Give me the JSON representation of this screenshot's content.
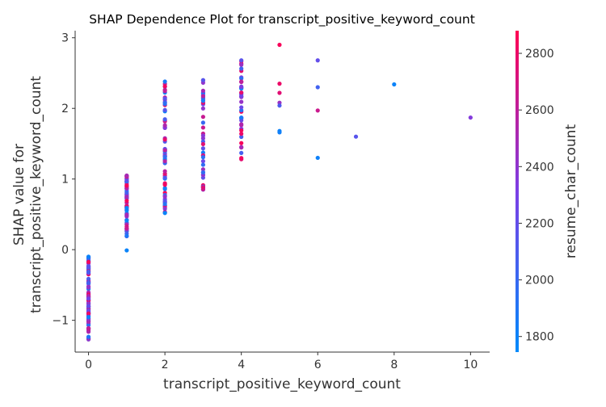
{
  "chart_data": {
    "type": "scatter",
    "title": "SHAP Dependence Plot for transcript_positive_keyword_count",
    "xlabel": "transcript_positive_keyword_count",
    "ylabel_lines": [
      "SHAP value for",
      "transcript_positive_keyword_count"
    ],
    "colorbar_label": "resume_char_count",
    "xlim": [
      -0.35,
      10.5
    ],
    "ylim": [
      -1.45,
      3.1
    ],
    "x_ticks": [
      0,
      2,
      4,
      6,
      8,
      10
    ],
    "y_ticks": [
      -1,
      0,
      1,
      2,
      3
    ],
    "colorbar_range": [
      1745,
      2880
    ],
    "colorbar_ticks": [
      1800,
      2000,
      2200,
      2400,
      2600,
      2800
    ],
    "colormap": [
      "#008afb",
      "#7b3fe6",
      "#ff0052"
    ],
    "grid": false,
    "point_groups": [
      {
        "x": 0,
        "y_min": -1.27,
        "y_max": -0.1,
        "count": 110,
        "c_min": 1760,
        "c_max": 2870
      },
      {
        "x": 1,
        "y_min": 0.19,
        "y_max": 1.05,
        "count": 60,
        "c_min": 1760,
        "c_max": 2870
      },
      {
        "x": 2,
        "y_min": 0.52,
        "y_max": 2.38,
        "count": 70,
        "c_min": 1760,
        "c_max": 2870
      },
      {
        "x": 3,
        "y_min": 0.85,
        "y_max": 2.4,
        "count": 45,
        "c_min": 1760,
        "c_max": 2870
      },
      {
        "x": 4,
        "y_min": 1.28,
        "y_max": 2.68,
        "count": 40,
        "c_min": 1760,
        "c_max": 2870
      }
    ],
    "points": [
      {
        "x": 1,
        "y": -0.01,
        "c": 1790
      },
      {
        "x": 2,
        "y": 0.52,
        "c": 1790
      },
      {
        "x": 5,
        "y": 2.9,
        "c": 2850
      },
      {
        "x": 5,
        "y": 2.35,
        "c": 2800
      },
      {
        "x": 5,
        "y": 2.22,
        "c": 2750
      },
      {
        "x": 5,
        "y": 2.08,
        "c": 2450
      },
      {
        "x": 5,
        "y": 2.04,
        "c": 2100
      },
      {
        "x": 5,
        "y": 1.68,
        "c": 1800
      },
      {
        "x": 5,
        "y": 1.66,
        "c": 1820
      },
      {
        "x": 6,
        "y": 2.68,
        "c": 2200
      },
      {
        "x": 6,
        "y": 2.3,
        "c": 2050
      },
      {
        "x": 6,
        "y": 1.97,
        "c": 2650
      },
      {
        "x": 6,
        "y": 1.3,
        "c": 1810
      },
      {
        "x": 7,
        "y": 1.6,
        "c": 2150
      },
      {
        "x": 8,
        "y": 2.34,
        "c": 1800
      },
      {
        "x": 10,
        "y": 1.87,
        "c": 2350
      }
    ]
  }
}
